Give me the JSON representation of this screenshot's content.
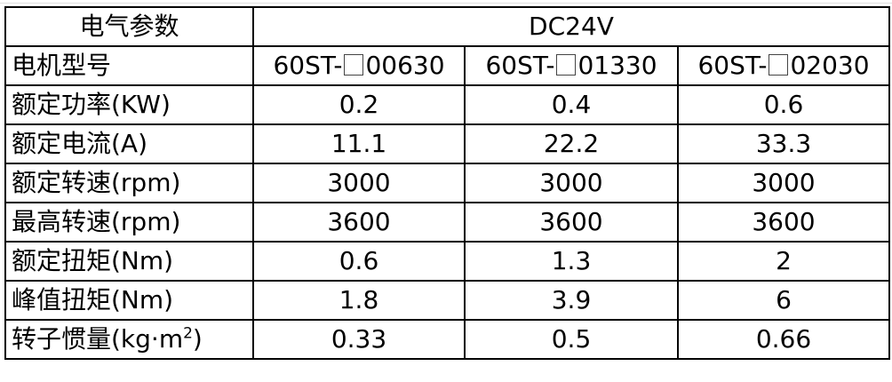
{
  "header": {
    "label": "电气参数",
    "voltage": "DC24V"
  },
  "model_row": {
    "label": "电机型号",
    "models": [
      {
        "prefix": "60ST-",
        "suffix": "00630"
      },
      {
        "prefix": "60ST-",
        "suffix": "01330"
      },
      {
        "prefix": "60ST-",
        "suffix": "02030"
      }
    ]
  },
  "rows": [
    {
      "label": "额定功率(KW)",
      "values": [
        "0.2",
        "0.4",
        "0.6"
      ]
    },
    {
      "label": "额定电流(A)",
      "values": [
        "11.1",
        "22.2",
        "33.3"
      ]
    },
    {
      "label": "额定转速(rpm)",
      "values": [
        "3000",
        "3000",
        "3000"
      ]
    },
    {
      "label": "最高转速(rpm)",
      "values": [
        "3600",
        "3600",
        "3600"
      ]
    },
    {
      "label": "额定扭矩(Nm)",
      "values": [
        "0.6",
        "1.3",
        "2"
      ]
    },
    {
      "label": "峰值扭矩(Nm)",
      "values": [
        "1.8",
        "3.9",
        "6"
      ]
    }
  ],
  "inertia_row": {
    "label": "转子惯量(kg·m",
    "sup": "2",
    "close": ")",
    "values": [
      "0.33",
      "0.5",
      "0.66"
    ]
  }
}
